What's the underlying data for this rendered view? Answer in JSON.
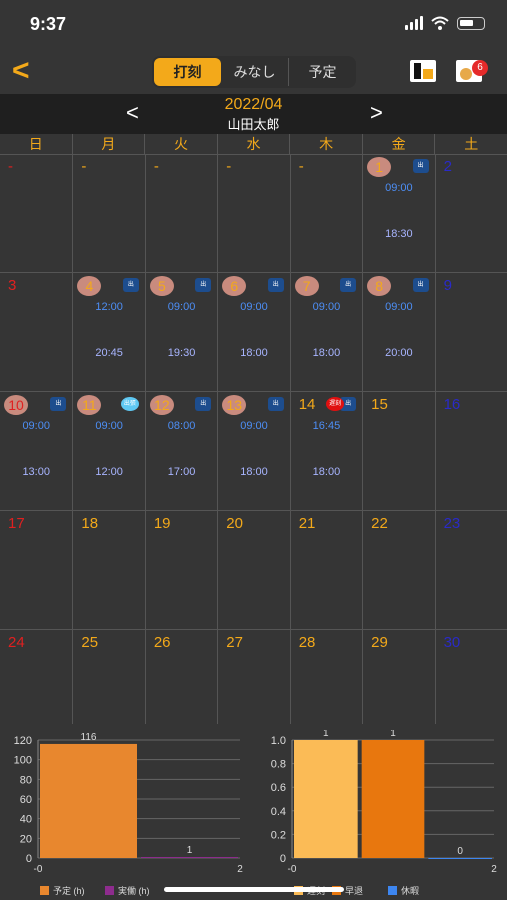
{
  "status": {
    "time": "9:37"
  },
  "nav": {
    "back_label": "<",
    "tabs": [
      {
        "label": "打刻",
        "active": true
      },
      {
        "label": "みなし"
      },
      {
        "label": "予定"
      }
    ],
    "notification_count": "6"
  },
  "header": {
    "prev": "<",
    "month": "2022/04",
    "next": ">",
    "user": "山田太郎"
  },
  "weekdays": [
    "日",
    "月",
    "火",
    "水",
    "木",
    "金",
    "土"
  ],
  "calendar": [
    {
      "day": "-"
    },
    {
      "day": "-"
    },
    {
      "day": "-"
    },
    {
      "day": "-"
    },
    {
      "day": "-"
    },
    {
      "day": "1",
      "circle": true,
      "tag": "出",
      "in": "09:00",
      "out": "18:30"
    },
    {
      "day": "2"
    },
    {
      "day": "3"
    },
    {
      "day": "4",
      "circle": true,
      "tag": "出",
      "in": "12:00",
      "out": "20:45"
    },
    {
      "day": "5",
      "circle": true,
      "tag": "出",
      "in": "09:00",
      "out": "19:30"
    },
    {
      "day": "6",
      "circle": true,
      "tag": "出",
      "in": "09:00",
      "out": "18:00"
    },
    {
      "day": "7",
      "circle": true,
      "tag": "出",
      "in": "09:00",
      "out": "18:00"
    },
    {
      "day": "8",
      "circle": true,
      "tag": "出",
      "in": "09:00",
      "out": "20:00"
    },
    {
      "day": "9"
    },
    {
      "day": "10",
      "circle": true,
      "tag": "出",
      "in": "09:00",
      "out": "13:00"
    },
    {
      "day": "11",
      "circle": true,
      "tag": "出張",
      "tag_style": "cyan",
      "in": "09:00",
      "out": "12:00"
    },
    {
      "day": "12",
      "circle": true,
      "tag": "出",
      "in": "08:00",
      "out": "17:00"
    },
    {
      "day": "13",
      "circle": true,
      "tag": "出",
      "in": "09:00",
      "out": "18:00"
    },
    {
      "day": "14",
      "tag": "出",
      "tag2": "遅刻",
      "in": "16:45",
      "out": "18:00"
    },
    {
      "day": "15"
    },
    {
      "day": "16"
    },
    {
      "day": "17"
    },
    {
      "day": "18"
    },
    {
      "day": "19"
    },
    {
      "day": "20"
    },
    {
      "day": "21"
    },
    {
      "day": "22"
    },
    {
      "day": "23"
    },
    {
      "day": "24"
    },
    {
      "day": "25"
    },
    {
      "day": "26"
    },
    {
      "day": "27"
    },
    {
      "day": "28"
    },
    {
      "day": "29"
    },
    {
      "day": "30"
    }
  ],
  "colors": {
    "accent": "#f3a91a",
    "sunday": "#e02020",
    "saturday": "#2a2ac8",
    "in_time": "#4d8ef5",
    "out_time": "#a8b5ff"
  },
  "chart_data": [
    {
      "type": "bar",
      "series": [
        {
          "name": "予定 (h)",
          "color": "#e8872e",
          "value": 116,
          "x": [
            0,
            1
          ]
        },
        {
          "name": "実働 (h)",
          "color": "#8e2c8e",
          "value": 1,
          "x": [
            1,
            2
          ]
        }
      ],
      "xlim": [
        0,
        2
      ],
      "ylim": [
        0,
        120
      ],
      "yticks": [
        "0",
        "20",
        "40",
        "60",
        "80",
        "100",
        "120"
      ],
      "xticks": [
        "-0",
        "2"
      ]
    },
    {
      "type": "bar",
      "series": [
        {
          "name": "遅刻",
          "color": "#fbbb56",
          "value": 1,
          "x": [
            0,
            0.67
          ]
        },
        {
          "name": "早退",
          "color": "#e8770e",
          "value": 1,
          "x": [
            0.67,
            1.33
          ]
        },
        {
          "name": "休暇",
          "color": "#3d86f0",
          "value": 0,
          "x": [
            1.33,
            2
          ]
        }
      ],
      "xlim": [
        0,
        2
      ],
      "ylim": [
        0,
        1
      ],
      "yticks": [
        "0",
        "0.2",
        "0.4",
        "0.6",
        "0.8",
        "1.0"
      ],
      "xticks": [
        "-0",
        "2"
      ]
    }
  ]
}
